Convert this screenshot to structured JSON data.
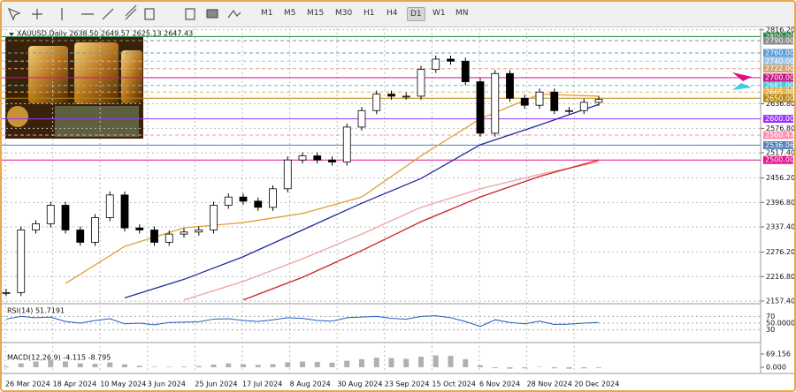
{
  "toolbar": {
    "timeframes": [
      "M1",
      "M5",
      "M15",
      "M30",
      "H1",
      "H4",
      "D1",
      "W1",
      "MN"
    ],
    "active": "D1"
  },
  "chart_data": {
    "type": "candlestick",
    "title": "XAUUSD,Daily  2638.50 2649.57 2625.13 2647.43",
    "closes": [
      2178,
      2330,
      2345,
      2390,
      2330,
      2300,
      2360,
      2415,
      2335,
      2330,
      2300,
      2320,
      2325,
      2330,
      2390,
      2410,
      2400,
      2385,
      2430,
      2500,
      2510,
      2500,
      2495,
      2580,
      2620,
      2660,
      2655,
      2655,
      2720,
      2745,
      2740,
      2690,
      2565,
      2710,
      2650,
      2633,
      2665,
      2620,
      2620,
      2640,
      2647
    ],
    "ylim": [
      2153,
      2820
    ],
    "yticks": [
      {
        "value": 2816.2,
        "label": "2816.20"
      },
      {
        "value": 2636.8,
        "label": "2636.80"
      },
      {
        "value": 2576.8,
        "label": "2576.80"
      },
      {
        "value": 2517.4,
        "label": "2517.40"
      },
      {
        "value": 2456.2,
        "label": "2456.20"
      },
      {
        "value": 2396.8,
        "label": "2396.80"
      },
      {
        "value": 2337.4,
        "label": "2337.40"
      },
      {
        "value": 2276.2,
        "label": "2276.20"
      },
      {
        "value": 2216.8,
        "label": "2216.80"
      },
      {
        "value": 2157.4,
        "label": "2157.40"
      }
    ],
    "xticks": [
      "26 Mar 2024",
      "18 Apr 2024",
      "10 May 2024",
      "3 Jun 2024",
      "25 Jun 2024",
      "17 Jul 2024",
      "8 Aug 2024",
      "30 Aug 2024",
      "23 Sep 2024",
      "15 Oct 2024",
      "6 Nov 2024",
      "28 Nov 2024",
      "20 Dec 2024"
    ],
    "grid": true,
    "levels": [
      {
        "value": 2800,
        "label": "2800.00",
        "color": "#1e8a3e",
        "dash": false
      },
      {
        "value": 2790,
        "label": "2790.00",
        "color": "#8a8a8a",
        "dash": true
      },
      {
        "value": 2760,
        "label": "2760.00",
        "color": "#5b9bd5",
        "dash": true
      },
      {
        "value": 2740,
        "label": "2740.00",
        "color": "#9dc3e6",
        "dash": true
      },
      {
        "value": 2722,
        "label": "2722.00",
        "color": "#d4a373",
        "dash": true
      },
      {
        "value": 2700,
        "label": "2700.00",
        "color": "#c71585",
        "dash": false
      },
      {
        "value": 2681,
        "label": "2681.00",
        "color": "#4fc3d9",
        "dash": true
      },
      {
        "value": 2665,
        "label": "2665.00",
        "color": "#e8b04a",
        "dash": true
      },
      {
        "value": 2650,
        "label": "2650.00",
        "color": "#b8860b",
        "dash": false
      },
      {
        "value": 2600,
        "label": "2600.00",
        "color": "#9b30ff",
        "dash": false
      },
      {
        "value": 2560.47,
        "label": "2560.47",
        "color": "#ff8fb1",
        "dash": true
      },
      {
        "value": 2536.06,
        "label": "2536.06",
        "color": "#4f81bd",
        "dash": false
      },
      {
        "value": 2500,
        "label": "2500.00",
        "color": "#e0148c",
        "dash": false
      }
    ],
    "averages": [
      {
        "color": "#e0a030",
        "values": [
          null,
          2200,
          2290,
          2335,
          2348,
          2370,
          2410,
          2510,
          2600,
          2660,
          2655
        ]
      },
      {
        "color": "#1f2a9c",
        "values": [
          null,
          null,
          2165,
          2210,
          2265,
          2330,
          2395,
          2455,
          2537,
          2585,
          2635
        ]
      },
      {
        "color": "#f0a0a0",
        "values": [
          null,
          null,
          null,
          2160,
          2205,
          2260,
          2320,
          2385,
          2430,
          2465,
          2495
        ]
      },
      {
        "color": "#cc2020",
        "values": [
          null,
          null,
          null,
          null,
          2160,
          2215,
          2280,
          2350,
          2410,
          2460,
          2500
        ]
      }
    ],
    "rsi": {
      "title": "RSI(14) 51.7191",
      "ylim": [
        0,
        100
      ],
      "yticks": [
        70,
        {
          "value": 50,
          "label": "50.0000"
        },
        30
      ],
      "values": [
        62,
        70,
        66,
        68,
        55,
        50,
        58,
        63,
        48,
        50,
        45,
        52,
        53,
        54,
        62,
        63,
        58,
        55,
        60,
        66,
        64,
        58,
        56,
        66,
        68,
        70,
        64,
        62,
        70,
        72,
        66,
        55,
        40,
        60,
        52,
        48,
        56,
        46,
        47,
        50,
        52
      ]
    },
    "macd": {
      "title": "MACD(12,26,9) -4.115 -8.795",
      "ylim": [
        -28,
        120
      ],
      "yticks": [
        {
          "value": 69.156,
          "label": "69.156"
        },
        {
          "value": 0,
          "label": "0.000"
        }
      ],
      "values": [
        5,
        20,
        30,
        38,
        30,
        20,
        18,
        25,
        15,
        8,
        3,
        2,
        4,
        6,
        14,
        20,
        16,
        12,
        16,
        26,
        30,
        28,
        24,
        34,
        42,
        50,
        48,
        44,
        55,
        62,
        60,
        42,
        10,
        -5,
        -8,
        -6,
        2,
        -6,
        -8,
        -6,
        -4
      ]
    }
  }
}
